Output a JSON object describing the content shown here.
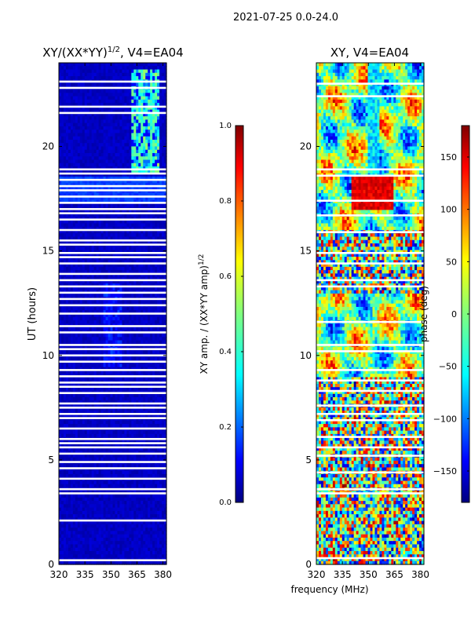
{
  "figure_title": "2021-07-25 0.0-24.0",
  "shared_xlabel": "frequency (MHz)",
  "colors": {
    "jet_stops": [
      "#00007f",
      "#0000ff",
      "#007fff",
      "#00ffff",
      "#7fff7f",
      "#ffff00",
      "#ff7f00",
      "#ff0000",
      "#7f0000"
    ],
    "background": "#ffffff",
    "axis": "#000000"
  },
  "chart_data": [
    {
      "type": "heatmap",
      "title": "XY/(XX*YY)^{1/2}, V4=EA04",
      "title_main": "XY/(XX*YY)",
      "title_sup": "1/2",
      "title_rest": ", V4=EA04",
      "xlabel": "",
      "ylabel": "UT (hours)",
      "xlim": [
        320,
        382
      ],
      "ylim": [
        0,
        24
      ],
      "xticks": [
        320,
        335,
        350,
        365,
        380
      ],
      "yticks": [
        0,
        5,
        10,
        15,
        20
      ],
      "pattern": "amplitude",
      "bright_band_mhz": [
        362,
        378
      ],
      "bright_band_hours": [
        18.7,
        23.7
      ],
      "gaps_hours": [
        23.1,
        22.8,
        21.9,
        21.6,
        18.9,
        18.7,
        18.4,
        18.1,
        17.9,
        17.6,
        17.3,
        17.0,
        16.8,
        16.5,
        16.0,
        15.5,
        15.3,
        14.9,
        14.7,
        14.4,
        13.9,
        13.6,
        13.3,
        13.0,
        12.7,
        12.4,
        12.0,
        11.4,
        11.1,
        10.5,
        10.3,
        10.0,
        9.7,
        9.3,
        9.0,
        8.7,
        8.5,
        8.2,
        7.7,
        7.5,
        7.2,
        7.0,
        6.5,
        6.0,
        5.8,
        5.6,
        5.3,
        4.9,
        4.6,
        4.1,
        3.6,
        3.4,
        2.1,
        0.2
      ]
    },
    {
      "type": "heatmap",
      "title": "XY, V4=EA04",
      "xlabel": "",
      "ylabel": "",
      "xlim": [
        320,
        382
      ],
      "ylim": [
        0,
        24
      ],
      "xticks": [
        320,
        335,
        350,
        365,
        380
      ],
      "yticks": [
        0,
        5,
        10,
        15,
        20
      ],
      "pattern": "phase",
      "gaps_hours": [
        23.0,
        22.4,
        18.9,
        18.6,
        17.4,
        16.7,
        15.9,
        14.9,
        14.4,
        13.6,
        13.3,
        11.6,
        10.5,
        10.2,
        9.3,
        8.8,
        8.3,
        7.6,
        7.2,
        6.9,
        6.1,
        5.6,
        5.2,
        4.4,
        3.6,
        3.4,
        0.3
      ]
    }
  ],
  "colorbars": [
    {
      "label": "XY amp. / (XX*YY amp)",
      "label_sup": "1/2",
      "range": [
        0.0,
        1.0
      ],
      "ticks": [
        "0.0",
        "0.2",
        "0.4",
        "0.6",
        "0.8",
        "1.0"
      ],
      "tick_values": [
        0,
        0.2,
        0.4,
        0.6,
        0.8,
        1.0
      ]
    },
    {
      "label": "phase (deg)",
      "range": [
        -180,
        180
      ],
      "ticks": [
        "−150",
        "−100",
        "−50",
        "0",
        "50",
        "100",
        "150"
      ],
      "tick_values": [
        -150,
        -100,
        -50,
        0,
        50,
        100,
        150
      ]
    }
  ]
}
